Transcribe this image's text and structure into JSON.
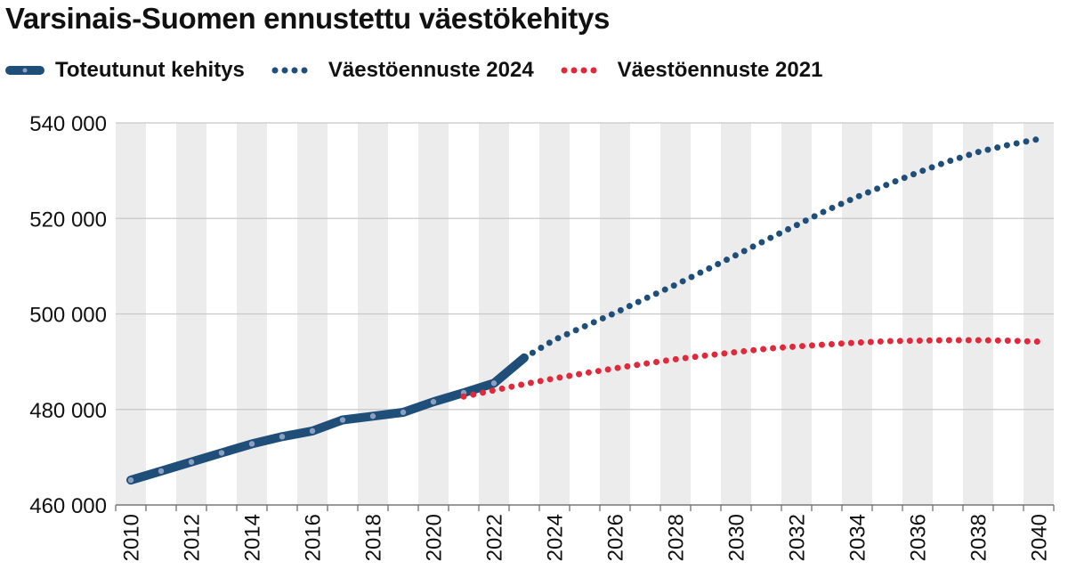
{
  "title": "Varsinais-Suomen ennustettu väestökehitys",
  "chart_data": {
    "type": "line",
    "title": "Varsinais-Suomen ennustettu väestökehitys",
    "xlabel": "",
    "ylabel": "",
    "xlim": [
      2010,
      2040
    ],
    "ylim": [
      460000,
      540000
    ],
    "y_ticks": [
      460000,
      480000,
      500000,
      520000,
      540000
    ],
    "y_tick_labels": [
      "460 000",
      "480 000",
      "500 000",
      "520 000",
      "540 000"
    ],
    "x_tick_labels": [
      "2010",
      "2012",
      "2014",
      "2016",
      "2018",
      "2020",
      "2022",
      "2024",
      "2026",
      "2028",
      "2030",
      "2032",
      "2034",
      "2036",
      "2038",
      "2040"
    ],
    "grid": "horizontal",
    "background_bands": "alternating vertical stripes per year",
    "legend_position": "top",
    "series": [
      {
        "name": "Toteutunut kehitys",
        "style": "solid",
        "color": "#1f4e79",
        "x": [
          2010,
          2011,
          2012,
          2013,
          2014,
          2015,
          2016,
          2017,
          2018,
          2019,
          2020,
          2021,
          2022,
          2023
        ],
        "values": [
          465200,
          467100,
          469000,
          470900,
          472800,
          474300,
          475500,
          477800,
          478600,
          479400,
          481600,
          483500,
          485500,
          490800
        ]
      },
      {
        "name": "Väestöennuste 2024",
        "style": "dotted",
        "color": "#1f4e79",
        "x": [
          2023,
          2024,
          2025,
          2026,
          2027,
          2028,
          2029,
          2030,
          2031,
          2032,
          2033,
          2034,
          2035,
          2036,
          2037,
          2038,
          2039,
          2040
        ],
        "values": [
          490800,
          494600,
          497400,
          500200,
          503200,
          506100,
          509200,
          512300,
          515500,
          518600,
          521700,
          524500,
          527100,
          529600,
          531900,
          533900,
          535400,
          536600
        ]
      },
      {
        "name": "Väestöennuste 2021",
        "style": "dotted",
        "color": "#e0293a",
        "x": [
          2021,
          2022,
          2023,
          2024,
          2025,
          2026,
          2027,
          2028,
          2029,
          2030,
          2031,
          2032,
          2033,
          2034,
          2035,
          2036,
          2037,
          2038,
          2039,
          2040
        ],
        "values": [
          482700,
          484000,
          485300,
          486500,
          487600,
          488600,
          489600,
          490500,
          491300,
          492000,
          492700,
          493200,
          493600,
          494000,
          494300,
          494400,
          494500,
          494500,
          494400,
          494200
        ]
      }
    ]
  }
}
